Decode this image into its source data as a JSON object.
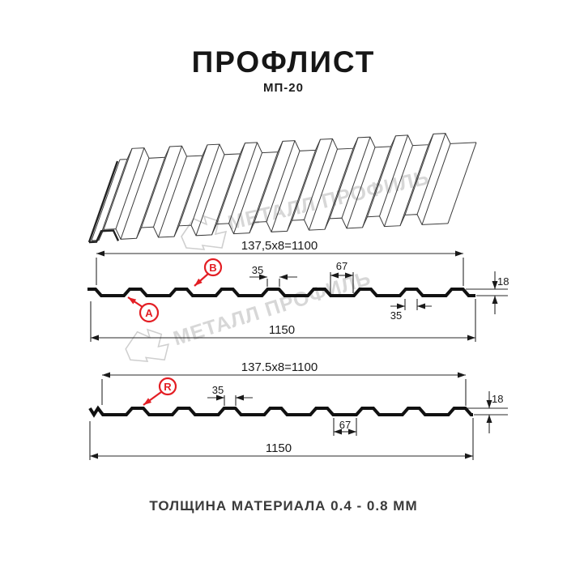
{
  "header": {
    "title": "ПРОФЛИСТ",
    "subtitle": "МП-20"
  },
  "watermark": {
    "text": "МЕТАЛЛ ПРОФИЛЬ"
  },
  "profile_top": {
    "useful_width_dim": "137,5x8=1100",
    "rib_top_width": "35",
    "flat_width": "67",
    "height": "18",
    "rib_top_width_2": "35",
    "total_width": "1150",
    "label_a": "A",
    "label_b": "B"
  },
  "profile_bottom": {
    "useful_width_dim": "137.5x8=1100",
    "rib_top_width": "35",
    "flat_width": "67",
    "height": "18",
    "total_width": "1150",
    "label_r": "R"
  },
  "footer": {
    "note": "ТОЛЩИНА МАТЕРИАЛА 0.4 - 0.8 ММ"
  },
  "colors": {
    "accent_red": "#e31e24",
    "line": "#1a1a1a",
    "watermark_gray": "#d7d7d7"
  }
}
